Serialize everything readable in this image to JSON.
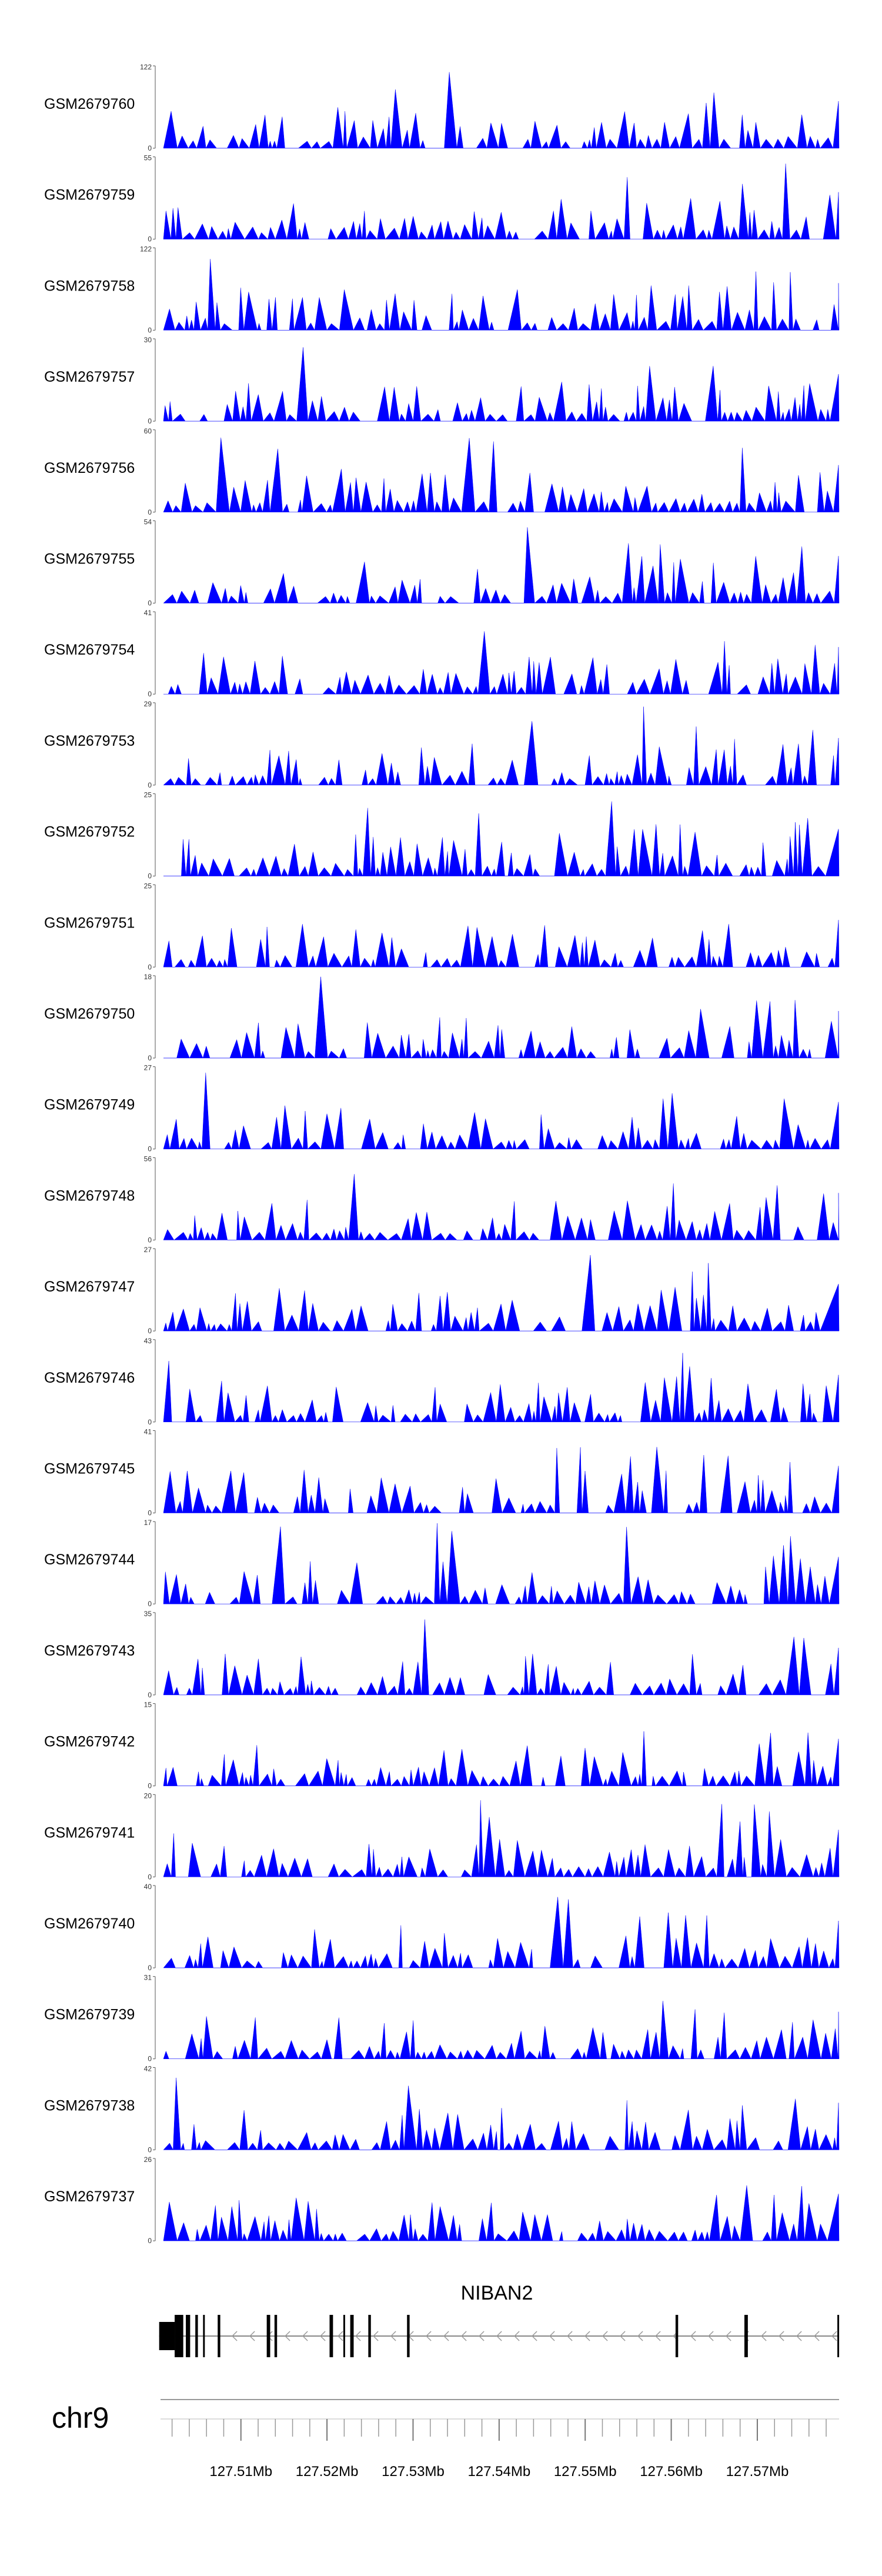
{
  "chart_data": {
    "type": "area",
    "series_color": "#0000FF",
    "tracks": [
      {
        "name": "GSM2679760",
        "ymax": 122,
        "ymin": 0
      },
      {
        "name": "GSM2679759",
        "ymax": 55,
        "ymin": 0
      },
      {
        "name": "GSM2679758",
        "ymax": 122,
        "ymin": 0
      },
      {
        "name": "GSM2679757",
        "ymax": 30,
        "ymin": 0
      },
      {
        "name": "GSM2679756",
        "ymax": 60,
        "ymin": 0
      },
      {
        "name": "GSM2679755",
        "ymax": 54,
        "ymin": 0
      },
      {
        "name": "GSM2679754",
        "ymax": 41,
        "ymin": 0
      },
      {
        "name": "GSM2679753",
        "ymax": 29,
        "ymin": 0
      },
      {
        "name": "GSM2679752",
        "ymax": 25,
        "ymin": 0
      },
      {
        "name": "GSM2679751",
        "ymax": 25,
        "ymin": 0
      },
      {
        "name": "GSM2679750",
        "ymax": 18,
        "ymin": 0
      },
      {
        "name": "GSM2679749",
        "ymax": 27,
        "ymin": 0
      },
      {
        "name": "GSM2679748",
        "ymax": 56,
        "ymin": 0
      },
      {
        "name": "GSM2679747",
        "ymax": 27,
        "ymin": 0
      },
      {
        "name": "GSM2679746",
        "ymax": 43,
        "ymin": 0
      },
      {
        "name": "GSM2679745",
        "ymax": 41,
        "ymin": 0
      },
      {
        "name": "GSM2679744",
        "ymax": 17,
        "ymin": 0
      },
      {
        "name": "GSM2679743",
        "ymax": 35,
        "ymin": 0
      },
      {
        "name": "GSM2679742",
        "ymax": 15,
        "ymin": 0
      },
      {
        "name": "GSM2679741",
        "ymax": 20,
        "ymin": 0
      },
      {
        "name": "GSM2679740",
        "ymax": 40,
        "ymin": 0
      },
      {
        "name": "GSM2679739",
        "ymax": 31,
        "ymin": 0
      },
      {
        "name": "GSM2679738",
        "ymax": 42,
        "ymin": 0
      },
      {
        "name": "GSM2679737",
        "ymax": 26,
        "ymin": 0
      }
    ],
    "xlim": [
      127.501,
      127.5795
    ],
    "x_ticks": [
      {
        "value": 127.51,
        "label": "127.51Mb"
      },
      {
        "value": 127.52,
        "label": "127.52Mb"
      },
      {
        "value": 127.53,
        "label": "127.53Mb"
      },
      {
        "value": 127.54,
        "label": "127.54Mb"
      },
      {
        "value": 127.55,
        "label": "127.55Mb"
      },
      {
        "value": 127.56,
        "label": "127.56Mb"
      },
      {
        "value": 127.57,
        "label": "127.57Mb"
      }
    ],
    "chromosome": "chr9",
    "gene": {
      "name": "NIBAN2",
      "strand": "-",
      "start": 127.5005,
      "end": 127.5795,
      "exons": [
        [
          127.5005,
          127.5023
        ],
        [
          127.5023,
          127.5033
        ],
        [
          127.5036,
          127.5041
        ],
        [
          127.5047,
          127.505
        ],
        [
          127.5056,
          127.5058
        ],
        [
          127.5073,
          127.5076
        ],
        [
          127.513,
          127.5134
        ],
        [
          127.5139,
          127.5142
        ],
        [
          127.5203,
          127.5207
        ],
        [
          127.5219,
          127.5221
        ],
        [
          127.5227,
          127.5231
        ],
        [
          127.5248,
          127.5251
        ],
        [
          127.5293,
          127.5296
        ],
        [
          127.5605,
          127.5608
        ],
        [
          127.5685,
          127.5689
        ],
        [
          127.5793,
          127.5795
        ]
      ]
    }
  }
}
